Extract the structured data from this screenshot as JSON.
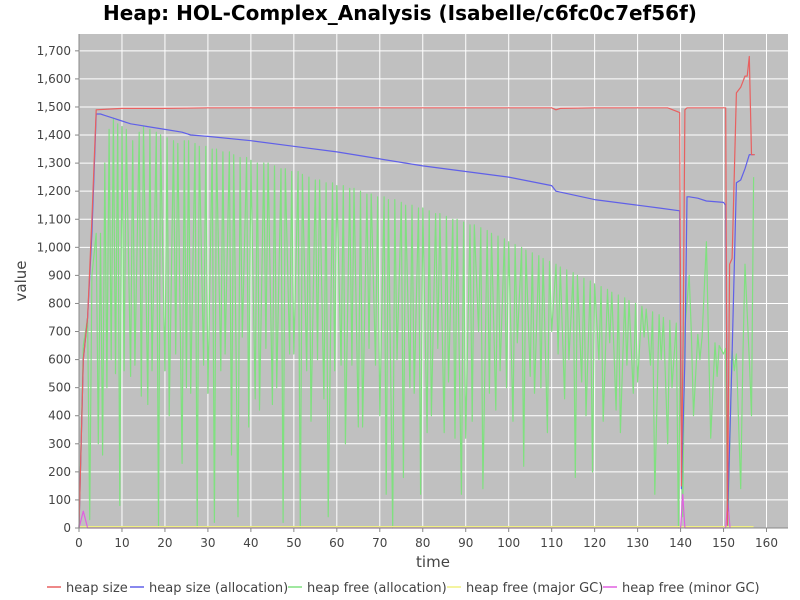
{
  "chart_data": {
    "type": "line",
    "title": "Heap: HOL-Complex_Analysis (Isabelle/c6fc0c7ef56f)",
    "xlabel": "time",
    "ylabel": "value",
    "xlim": [
      0,
      165
    ],
    "ylim": [
      0,
      1760
    ],
    "x_ticks": [
      0,
      10,
      20,
      30,
      40,
      50,
      60,
      70,
      80,
      90,
      100,
      110,
      120,
      130,
      140,
      150,
      160
    ],
    "x_tick_labels": [
      "0",
      "10",
      "20",
      "30",
      "40",
      "50",
      "60",
      "70",
      "80",
      "90",
      "100",
      "110",
      "120",
      "130",
      "140",
      "150",
      "160"
    ],
    "y_ticks": [
      0,
      100,
      200,
      300,
      400,
      500,
      600,
      700,
      800,
      900,
      1000,
      1100,
      1200,
      1300,
      1400,
      1500,
      1600,
      1700
    ],
    "y_tick_labels": [
      "0",
      "100",
      "200",
      "300",
      "400",
      "500",
      "600",
      "700",
      "800",
      "900",
      "1,000",
      "1,100",
      "1,200",
      "1,300",
      "1,400",
      "1,500",
      "1,600",
      "1,700"
    ],
    "grid": true,
    "legend_position": "bottom",
    "background_color": "#c0c0c0",
    "series": [
      {
        "name": "heap size",
        "color": "#e86060",
        "x": [
          0,
          1,
          2,
          3,
          4,
          10,
          20,
          30,
          40,
          50,
          60,
          70,
          80,
          90,
          100,
          110,
          111,
          112,
          120,
          130,
          137,
          139.8,
          140.2,
          140.6,
          141,
          141.5,
          142,
          149.5,
          150.5,
          150.9,
          151.4,
          152,
          153,
          154,
          155,
          155.5,
          156,
          156.5,
          157,
          157.3
        ],
        "y": [
          0,
          600,
          750,
          1100,
          1490,
          1495,
          1495,
          1497,
          1497,
          1497,
          1497,
          1497,
          1497,
          1497,
          1497,
          1497,
          1490,
          1495,
          1497,
          1497,
          1497,
          1480,
          150,
          700,
          1490,
          1497,
          1497,
          1497,
          1497,
          10,
          940,
          960,
          1550,
          1570,
          1610,
          1610,
          1680,
          1330,
          1330,
          1330
        ]
      },
      {
        "name": "heap size (allocation)",
        "color": "#6060e8",
        "x": [
          0,
          1,
          2,
          3,
          4,
          5,
          6,
          8,
          10,
          12,
          14,
          16,
          20,
          24,
          26,
          30,
          40,
          50,
          60,
          70,
          80,
          90,
          100,
          110,
          111,
          120,
          130,
          135,
          139.8,
          140.2,
          141,
          141.5,
          142,
          144,
          146,
          150,
          150.5,
          151,
          152,
          153,
          154,
          155,
          156,
          157
        ],
        "y": [
          0,
          600,
          750,
          1050,
          1475,
          1475,
          1470,
          1460,
          1450,
          1440,
          1435,
          1430,
          1420,
          1410,
          1400,
          1395,
          1380,
          1360,
          1340,
          1315,
          1290,
          1270,
          1250,
          1220,
          1200,
          1170,
          1150,
          1140,
          1130,
          140,
          600,
          1180,
          1180,
          1175,
          1165,
          1160,
          1150,
          60,
          620,
          1230,
          1240,
          1280,
          1330,
          1330
        ]
      },
      {
        "name": "heap free (allocation)",
        "color": "#80e080",
        "x": [
          0,
          1,
          2,
          2.5,
          3,
          4,
          4.5,
          5,
          5.5,
          6,
          6.5,
          7,
          7.5,
          8,
          8.5,
          9,
          9.5,
          10,
          10.5,
          11,
          12,
          12.5,
          13,
          14,
          14.5,
          15,
          16,
          16.5,
          17,
          18,
          18.5,
          19,
          20,
          20.5,
          21,
          22,
          22.5,
          23,
          24,
          24.5,
          25,
          25.5,
          26,
          27,
          27.5,
          28,
          29,
          29.5,
          30,
          31,
          31.5,
          32,
          33,
          33.5,
          34,
          35,
          35.5,
          36,
          37,
          37.5,
          38,
          39,
          39.5,
          40,
          41,
          41.5,
          42,
          43,
          43.5,
          44,
          45,
          45.5,
          46,
          47,
          47.5,
          48,
          49,
          49.5,
          50,
          51,
          51.5,
          52,
          53,
          53.5,
          54,
          55,
          55.5,
          56,
          57,
          57.5,
          58,
          59,
          59.5,
          60,
          61,
          61.5,
          62,
          63,
          63.5,
          64,
          65,
          65.5,
          66,
          67,
          67.5,
          68,
          69,
          69.5,
          70,
          71,
          71.5,
          72,
          73,
          73.5,
          74,
          75,
          75.5,
          76,
          77,
          77.5,
          78,
          79,
          79.5,
          80,
          81,
          81.5,
          82,
          83,
          83.5,
          84,
          85,
          85.5,
          86,
          87,
          87.5,
          88,
          89,
          89.5,
          90,
          91,
          91.5,
          92,
          93,
          93.5,
          94,
          95,
          95.5,
          96,
          97,
          97.5,
          98,
          99,
          99.5,
          100,
          101,
          101.5,
          102,
          103,
          103.5,
          104,
          105,
          105.5,
          106,
          107,
          107.5,
          108,
          109,
          109.5,
          110,
          111,
          111.5,
          112,
          113,
          113.5,
          114,
          115,
          115.5,
          116,
          117,
          117.5,
          118,
          119,
          119.5,
          120,
          121,
          121.5,
          122,
          123,
          123.5,
          124,
          125,
          125.5,
          126,
          127,
          127.5,
          128,
          129,
          129.5,
          130,
          131,
          131.5,
          132,
          133,
          133.5,
          134,
          135,
          135.5,
          136,
          137,
          137.5,
          138,
          139,
          139.5,
          140,
          140.5,
          141,
          142,
          142.5,
          143,
          144,
          144.5,
          145,
          146,
          146.5,
          147,
          148,
          148.5,
          149,
          150,
          150.5,
          151,
          152,
          152.5,
          153,
          154,
          154.5,
          155,
          156,
          156.5,
          157
        ],
        "y": [
          0,
          650,
          750,
          30,
          900,
          1050,
          300,
          1050,
          260,
          1300,
          500,
          1420,
          600,
          1460,
          550,
          1440,
          80,
          1430,
          560,
          1420,
          540,
          1380,
          580,
          1410,
          470,
          1430,
          440,
          1420,
          560,
          1410,
          0,
          1400,
          560,
          1390,
          400,
          1380,
          620,
          1370,
          230,
          1380,
          500,
          1380,
          480,
          1370,
          0,
          1360,
          580,
          1360,
          480,
          1350,
          20,
          1350,
          560,
          1340,
          620,
          1340,
          260,
          1330,
          40,
          1320,
          680,
          1320,
          360,
          1310,
          460,
          1300,
          420,
          1300,
          640,
          1300,
          440,
          1290,
          500,
          1280,
          20,
          1280,
          620,
          1270,
          620,
          1270,
          0,
          1260,
          560,
          1250,
          380,
          1240,
          600,
          1240,
          460,
          1230,
          40,
          1230,
          560,
          1220,
          580,
          1220,
          300,
          1210,
          580,
          1210,
          360,
          1200,
          360,
          1190,
          640,
          1190,
          580,
          1180,
          400,
          1180,
          120,
          1170,
          0,
          1170,
          600,
          1160,
          180,
          1150,
          500,
          1150,
          480,
          1140,
          120,
          1140,
          340,
          1130,
          400,
          1120,
          640,
          1120,
          340,
          1110,
          520,
          1100,
          320,
          1100,
          120,
          1090,
          320,
          1080,
          380,
          1080,
          700,
          1070,
          140,
          1060,
          480,
          1050,
          420,
          1040,
          560,
          1030,
          500,
          1020,
          380,
          1010,
          660,
          1000,
          220,
          990,
          540,
          980,
          480,
          970,
          500,
          960,
          340,
          950,
          700,
          940,
          620,
          930,
          460,
          920,
          600,
          910,
          180,
          900,
          520,
          890,
          400,
          880,
          200,
          870,
          600,
          860,
          380,
          850,
          660,
          840,
          420,
          830,
          340,
          820,
          580,
          810,
          480,
          800,
          520,
          790,
          680,
          780,
          580,
          770,
          120,
          760,
          600,
          750,
          300,
          740,
          500,
          730,
          0,
          720,
          40,
          710,
          900,
          700,
          400,
          690,
          600,
          680,
          1020,
          670,
          320,
          660,
          540,
          650,
          620,
          640,
          0,
          630,
          560,
          620,
          140,
          610,
          940,
          600,
          400,
          1250
        ]
      },
      {
        "name": "heap free (major GC)",
        "color": "#f0f080",
        "x": [
          0,
          157
        ],
        "y": [
          5,
          5
        ]
      },
      {
        "name": "heap free (minor GC)",
        "color": "#e060e0",
        "x": [
          0,
          1,
          2,
          140,
          140.5,
          141,
          150.5,
          151,
          151.5
        ],
        "y": [
          0,
          60,
          0,
          0,
          120,
          0,
          0,
          100,
          0
        ]
      }
    ]
  }
}
